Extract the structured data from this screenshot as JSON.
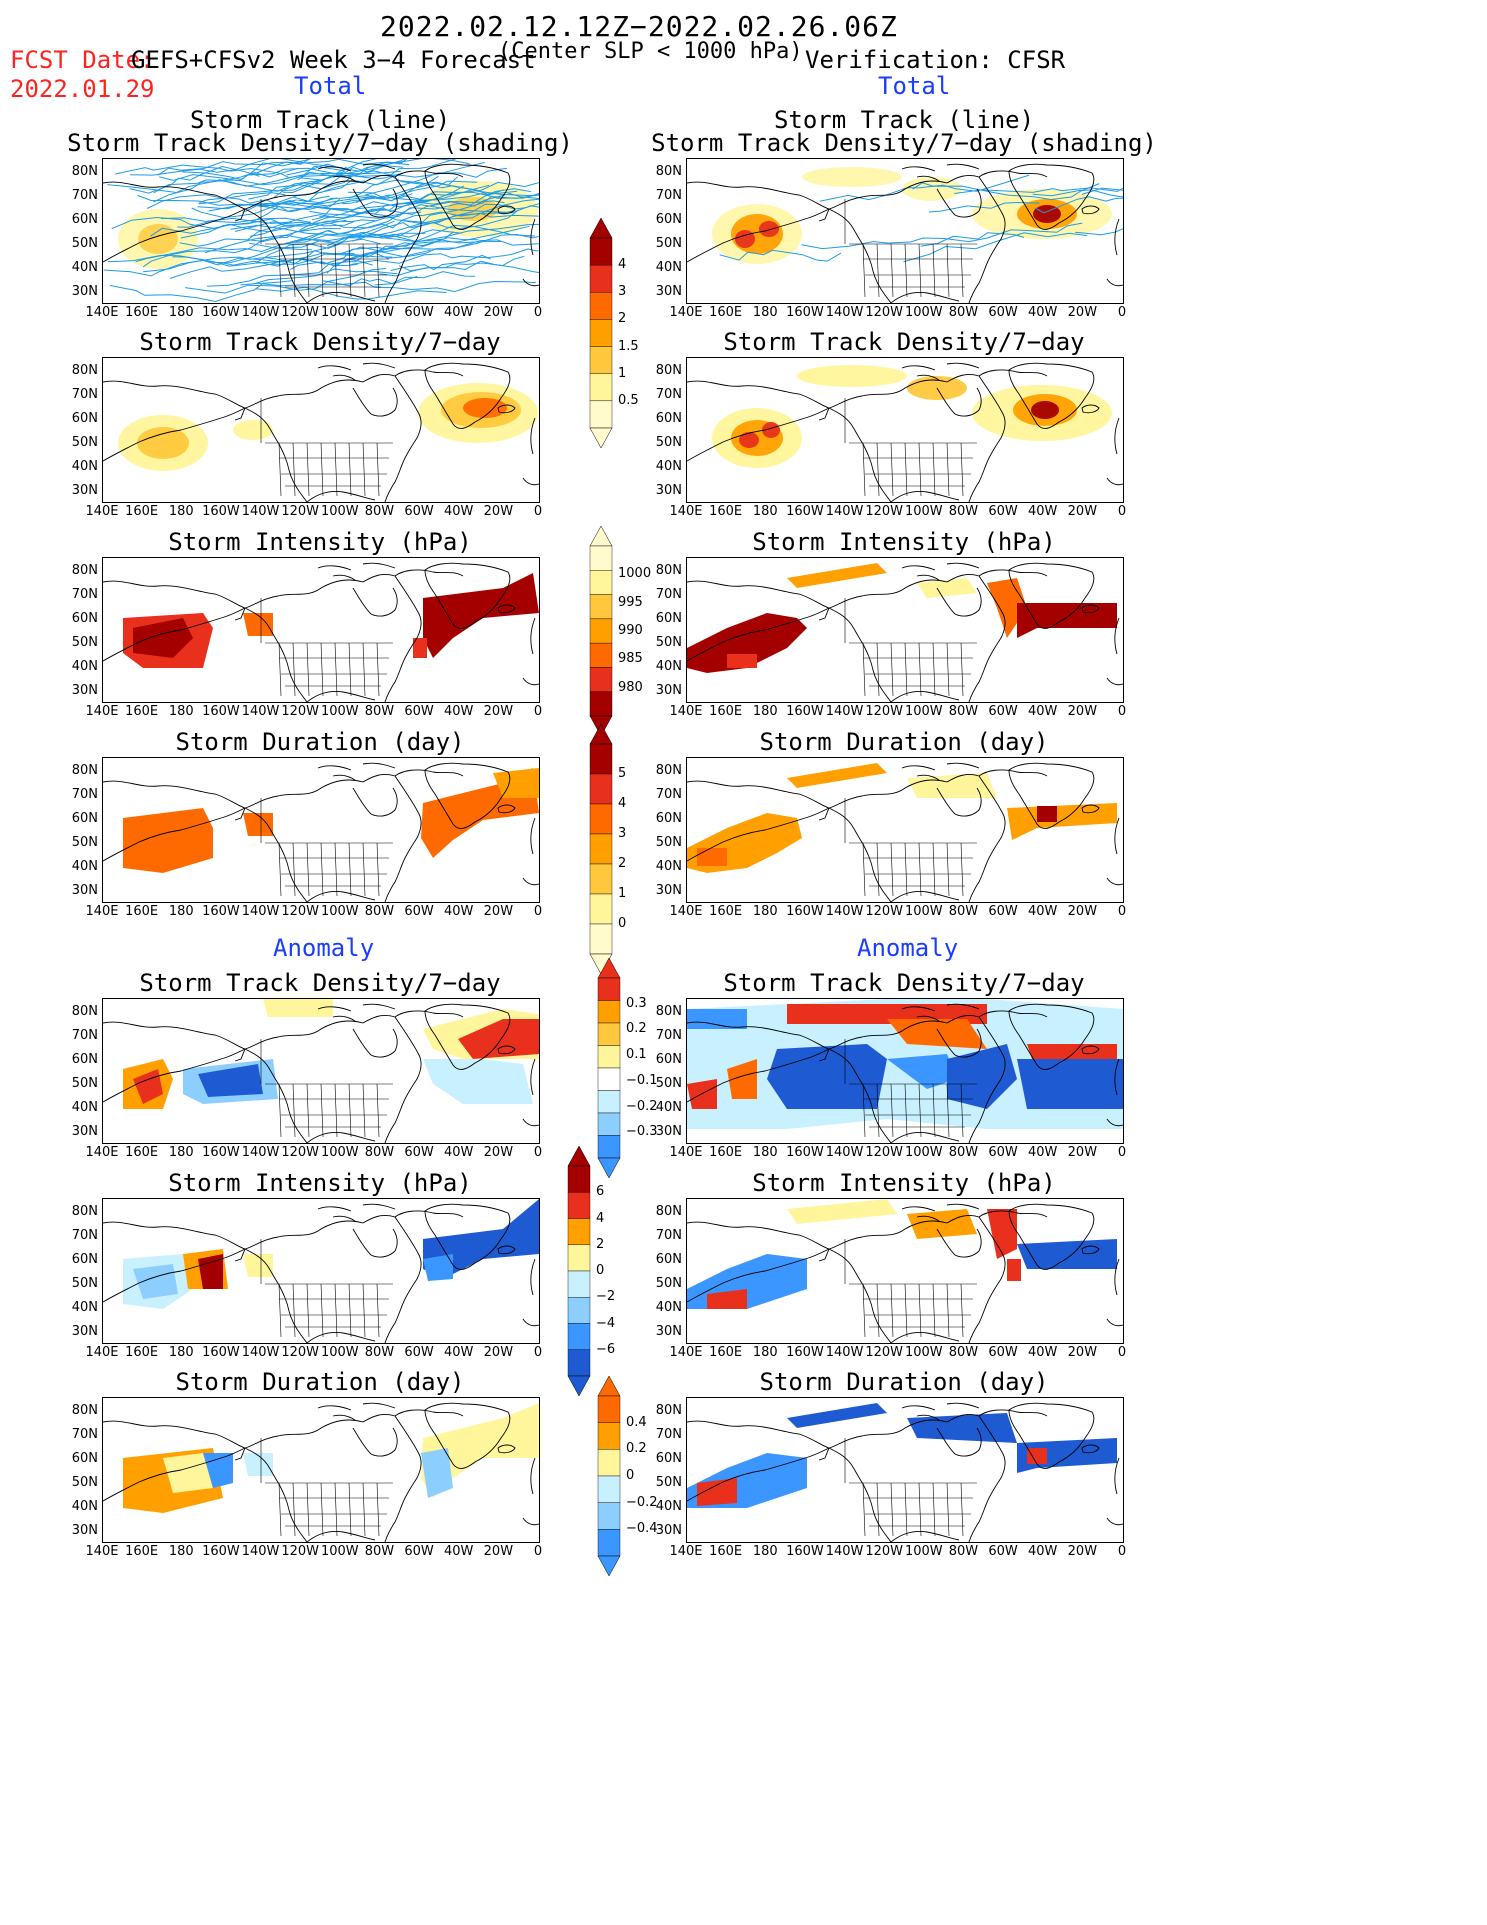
{
  "header": {
    "date_range": "2022.02.12.12Z−2022.02.26.06Z",
    "fcst_label": "FCST Date:",
    "fcst_date": "2022.01.29",
    "model_title": "GEFS+CFSv2 Week 3−4 Forecast",
    "criterion": "(Center SLP < 1000 hPa)",
    "verification": "Verification: CFSR"
  },
  "sections": {
    "total_left": "Total",
    "total_right": "Total",
    "anomaly_left": "Anomaly",
    "anomaly_right": "Anomaly"
  },
  "panel_titles": {
    "track_line": "Storm Track (line)",
    "track_shading": "Storm Track Density/7−day (shading)",
    "density": "Storm Track Density/7−day",
    "intensity": "Storm Intensity (hPa)",
    "duration": "Storm Duration (day)"
  },
  "axes": {
    "lat_labels": [
      "80N",
      "70N",
      "60N",
      "50N",
      "40N",
      "30N"
    ],
    "lon_labels": [
      "140E",
      "160E",
      "180",
      "160W",
      "140W",
      "120W",
      "100W",
      "80W",
      "60W",
      "40W",
      "20W",
      "0"
    ]
  },
  "colorbars": {
    "density_total": [
      "4",
      "3",
      "2",
      "1.5",
      "1",
      "0.5"
    ],
    "intensity_total": [
      "1000",
      "995",
      "990",
      "985",
      "980"
    ],
    "duration_total": [
      "5",
      "4",
      "3",
      "2",
      "1",
      "0"
    ],
    "density_anom": [
      "0.3",
      "0.2",
      "0.1",
      "−0.1",
      "−0.2",
      "−0.3"
    ],
    "intensity_anom": [
      "6",
      "4",
      "2",
      "0",
      "−2",
      "−4",
      "−6"
    ],
    "duration_anom": [
      "0.4",
      "0.2",
      "0",
      "−0.2",
      "−0.4"
    ]
  },
  "colors": {
    "dark_red": "#a50000",
    "red": "#e8301c",
    "orange_red": "#ff6a00",
    "orange": "#ffa000",
    "light_orange": "#ffc83c",
    "yellow": "#fff59a",
    "pale_yellow": "#fffbcc",
    "light_blue": "#c8f0ff",
    "sky_blue": "#8ccfff",
    "mid_blue": "#3c96ff",
    "dark_blue": "#1e5ad2",
    "track_line": "#1e9be6",
    "title_red": "#ff2222",
    "title_blue": "#1a3cff"
  }
}
